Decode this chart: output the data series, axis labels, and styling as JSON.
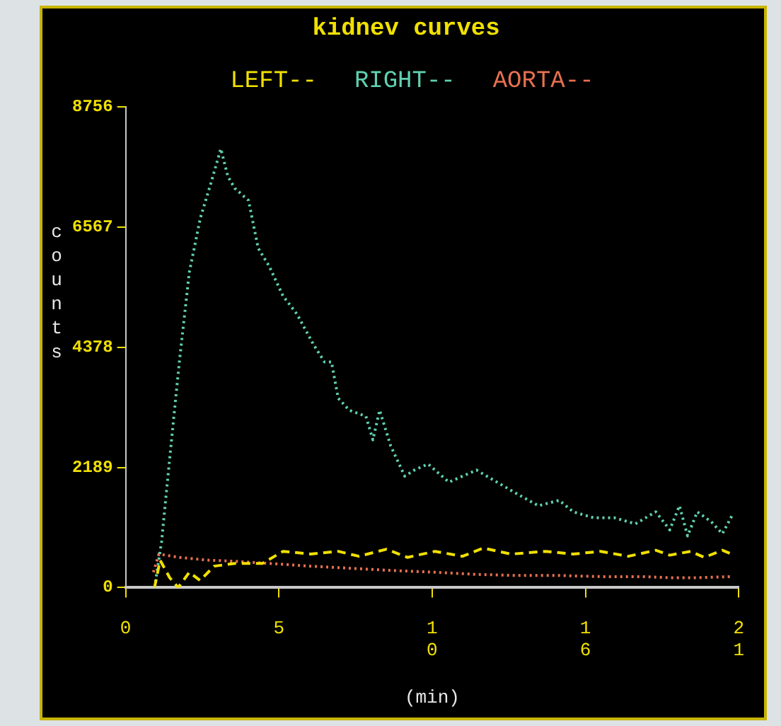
{
  "chart_data": {
    "type": "line",
    "title": "kidnev curves",
    "xlabel": "(min)",
    "ylabel": "counts",
    "xlim": [
      0,
      21
    ],
    "xticks": [
      0,
      {
        "value": 5.25,
        "label": "5"
      },
      {
        "value": 10.5,
        "label": "10"
      },
      {
        "value": 15.75,
        "label": "16"
      },
      21
    ],
    "ylim": [
      0,
      8756
    ],
    "yticks": [
      0,
      2189,
      4378,
      6567,
      8756
    ],
    "grid": false,
    "legend": "top",
    "marker": "none",
    "series": [
      {
        "name": "LEFT--",
        "color": "#f0e000",
        "line_style": "dashed",
        "x": [
          0.99,
          1.18,
          1.51,
          1.8,
          2.18,
          2.55,
          3.03,
          3.74,
          4.68,
          5.39,
          6.34,
          7.28,
          7.99,
          8.94,
          9.65,
          10.6,
          11.54,
          12.25,
          13.2,
          14.38,
          15.33,
          16.27,
          17.22,
          18.16,
          18.64,
          19.35,
          19.82,
          20.44,
          20.77
        ],
        "values": [
          0,
          500,
          180,
          0,
          280,
          130,
          390,
          440,
          440,
          660,
          610,
          660,
          570,
          700,
          550,
          660,
          570,
          720,
          610,
          660,
          610,
          660,
          570,
          680,
          590,
          660,
          550,
          680,
          610
        ]
      },
      {
        "name": "RIGHT--",
        "color": "#60d0b0",
        "line_style": "dotted",
        "x": [
          0.99,
          1.23,
          1.51,
          1.84,
          2.18,
          2.56,
          2.93,
          3.26,
          3.5,
          3.74,
          4.21,
          4.54,
          4.92,
          5.39,
          5.87,
          6.43,
          6.81,
          7.05,
          7.28,
          7.66,
          8.23,
          8.47,
          8.7,
          9.08,
          9.56,
          9.89,
          10.36,
          11.07,
          12.02,
          12.72,
          13.43,
          14.14,
          14.85,
          15.33,
          16.04,
          16.75,
          17.46,
          18.16,
          18.64,
          18.97,
          19.25,
          19.58,
          20.06,
          20.44,
          20.77
        ],
        "values": [
          0,
          830,
          2360,
          4110,
          5740,
          6730,
          7380,
          7990,
          7490,
          7270,
          7050,
          6180,
          5850,
          5310,
          4980,
          4430,
          4110,
          4110,
          3450,
          3230,
          3120,
          2690,
          3230,
          2580,
          2030,
          2140,
          2250,
          1920,
          2140,
          1920,
          1700,
          1490,
          1590,
          1380,
          1270,
          1270,
          1160,
          1380,
          1050,
          1490,
          940,
          1380,
          1200,
          980,
          1310
        ]
      },
      {
        "name": "AORTA--",
        "color": "#e87050",
        "line_style": "dotted",
        "x": [
          0.95,
          1.14,
          1.84,
          2.79,
          3.74,
          4.92,
          6.34,
          7.76,
          9.18,
          10.6,
          12.02,
          13.43,
          14.85,
          16.27,
          17.69,
          18.64,
          19.58,
          20.77
        ],
        "values": [
          280,
          610,
          550,
          500,
          480,
          440,
          390,
          350,
          310,
          280,
          240,
          220,
          220,
          200,
          200,
          180,
          180,
          200
        ]
      }
    ]
  }
}
